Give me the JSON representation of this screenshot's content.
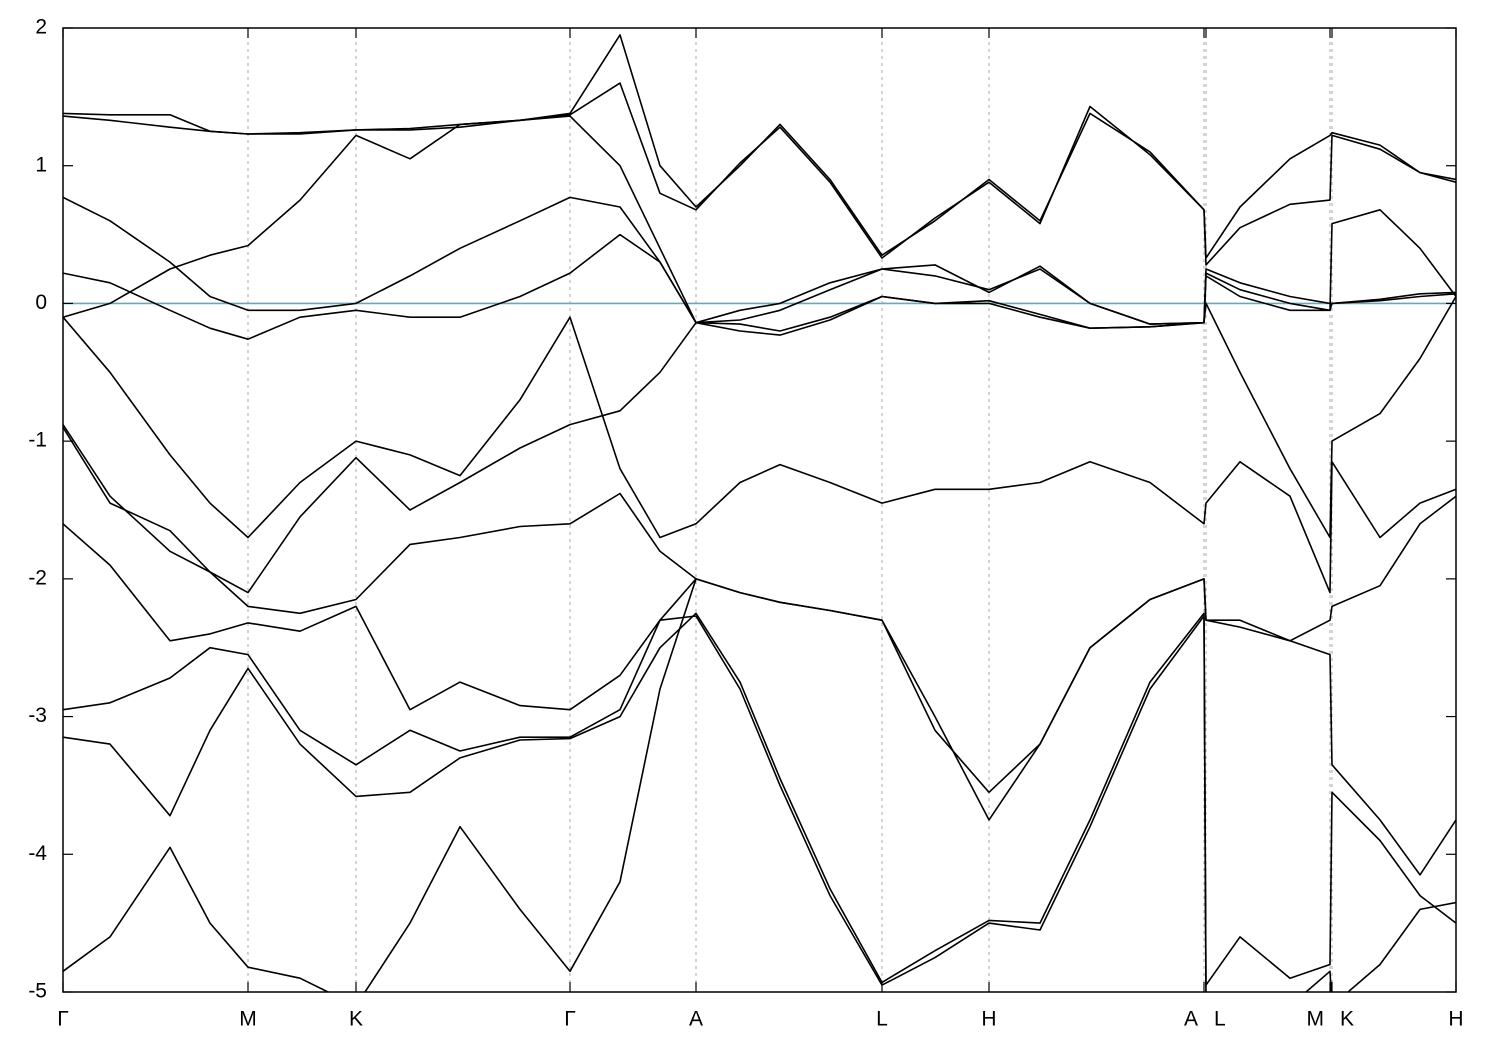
{
  "chart_data": {
    "type": "line",
    "xlim": [
      0,
      1393
    ],
    "ylim": [
      -5,
      2
    ],
    "yticks": [
      -5,
      -4,
      -3,
      -2,
      -1,
      0,
      1,
      2
    ],
    "xticks": [
      {
        "value": 0,
        "label": "Γ"
      },
      {
        "value": 185,
        "label": "M"
      },
      {
        "value": 293,
        "label": "K"
      },
      {
        "value": 507,
        "label": "Γ"
      },
      {
        "value": 633,
        "label": "A"
      },
      {
        "value": 819,
        "label": "L"
      },
      {
        "value": 926,
        "label": "H"
      },
      {
        "value": 1141,
        "label": "A"
      },
      {
        "value": 1143,
        "label": "L"
      },
      {
        "value": 1267,
        "label": "M"
      },
      {
        "value": 1269,
        "label": "K"
      },
      {
        "value": 1393,
        "label": "H"
      }
    ],
    "grid": true,
    "hline": 0,
    "hline_color": "#5aaec4",
    "x": [
      0,
      47,
      107,
      147,
      185,
      237,
      293,
      347,
      397,
      457,
      507,
      557,
      597,
      633,
      677,
      717,
      767,
      819,
      872,
      926,
      977,
      1027,
      1087,
      1141,
      1143,
      1177,
      1227,
      1267,
      1269,
      1317,
      1357,
      1393
    ],
    "series": [
      {
        "color": "#000000",
        "values": [
          1.38,
          1.37,
          1.37,
          1.25,
          1.23,
          1.23,
          1.26,
          1.26,
          1.28,
          1.33,
          1.38,
          1.95,
          1.0,
          0.7,
          1.0,
          1.3,
          0.9,
          0.35,
          0.6,
          0.9,
          0.6,
          1.38,
          1.1,
          0.68,
          0.33,
          0.7,
          1.05,
          1.22,
          1.24,
          1.15,
          0.95,
          0.9
        ]
      },
      {
        "color": "#000000",
        "values": [
          1.36,
          1.33,
          1.28,
          1.25,
          1.23,
          1.24,
          1.26,
          1.27,
          1.3,
          1.33,
          1.37,
          1.6,
          0.8,
          0.68,
          1.02,
          1.28,
          0.88,
          0.33,
          0.62,
          0.88,
          0.58,
          1.43,
          1.08,
          0.68,
          0.28,
          0.55,
          0.72,
          0.75,
          1.22,
          1.12,
          0.95,
          0.88
        ]
      },
      {
        "color": "#000000",
        "values": [
          -0.1,
          0.0,
          0.25,
          0.35,
          0.42,
          0.75,
          1.22,
          1.05,
          1.3,
          1.33,
          1.36,
          1.0,
          0.4,
          -0.14,
          -0.05,
          0.0,
          0.15,
          0.25,
          0.2,
          0.1,
          0.25,
          0.0,
          -0.15,
          -0.14,
          0.25,
          0.15,
          0.05,
          0.0,
          0.0,
          0.03,
          0.07,
          0.08
        ]
      },
      {
        "color": "#000000",
        "values": [
          0.77,
          0.6,
          0.3,
          0.05,
          -0.05,
          -0.05,
          0.0,
          0.2,
          0.4,
          0.6,
          0.77,
          0.7,
          0.3,
          -0.14,
          -0.15,
          -0.2,
          -0.1,
          0.05,
          0.0,
          0.0,
          -0.1,
          -0.18,
          -0.17,
          -0.14,
          0.2,
          0.05,
          -0.05,
          -0.05,
          0.58,
          0.68,
          0.4,
          0.05
        ]
      },
      {
        "color": "#000000",
        "values": [
          0.22,
          0.15,
          -0.05,
          -0.18,
          -0.26,
          -0.1,
          -0.05,
          -0.1,
          -0.1,
          0.05,
          0.22,
          0.5,
          0.3,
          -0.14,
          -0.2,
          -0.23,
          -0.12,
          0.05,
          0.0,
          0.02,
          -0.08,
          -0.18,
          -0.17,
          -0.14,
          0.0,
          -0.5,
          -1.2,
          -1.7,
          -1.0,
          -0.8,
          -0.4,
          0.05
        ]
      },
      {
        "color": "#000000",
        "values": [
          -0.1,
          -0.5,
          -1.1,
          -1.45,
          -1.7,
          -1.3,
          -1.0,
          -1.1,
          -1.25,
          -0.7,
          -0.1,
          -1.2,
          -1.7,
          -1.6,
          -1.3,
          -1.17,
          -1.3,
          -1.45,
          -1.35,
          -1.35,
          -1.3,
          -1.15,
          -1.3,
          -1.6,
          -1.45,
          -1.15,
          -1.4,
          -2.1,
          -1.15,
          -1.7,
          -1.45,
          -1.35
        ]
      },
      {
        "color": "#000000",
        "values": [
          -0.88,
          -1.4,
          -1.8,
          -1.95,
          -2.1,
          -1.55,
          -1.12,
          -1.5,
          -1.3,
          -1.05,
          -0.88,
          -0.78,
          -0.5,
          -0.14,
          -0.12,
          -0.05,
          0.1,
          0.25,
          0.28,
          0.08,
          0.27,
          0.0,
          -0.15,
          -0.14,
          0.22,
          0.1,
          0.0,
          -0.05,
          0.0,
          0.02,
          0.05,
          0.07
        ]
      },
      {
        "color": "#000000",
        "values": [
          -0.9,
          -1.45,
          -1.65,
          -1.95,
          -2.2,
          -2.25,
          -2.15,
          -1.75,
          -1.7,
          -1.62,
          -1.6,
          -1.38,
          -1.8,
          -2.0,
          -2.1,
          -2.17,
          -2.23,
          -2.3,
          -3.0,
          -3.75,
          -3.2,
          -2.5,
          -2.15,
          -2.0,
          -2.3,
          -2.3,
          -2.45,
          -2.3,
          -2.2,
          -2.05,
          -1.6,
          -1.4
        ]
      },
      {
        "color": "#000000",
        "values": [
          -1.6,
          -1.9,
          -2.45,
          -2.4,
          -2.32,
          -2.38,
          -2.2,
          -2.95,
          -2.75,
          -2.92,
          -2.95,
          -2.7,
          -2.3,
          -2.0,
          -2.1,
          -2.17,
          -2.23,
          -2.3,
          -3.1,
          -3.55,
          -3.2,
          -2.5,
          -2.15,
          -2.0,
          -2.3,
          -2.35,
          -2.45,
          -2.55,
          -3.35,
          -3.75,
          -4.15,
          -3.75
        ]
      },
      {
        "color": "#000000",
        "values": [
          -2.95,
          -2.9,
          -2.72,
          -2.5,
          -2.55,
          -3.1,
          -3.35,
          -3.1,
          -3.25,
          -3.15,
          -3.15,
          -2.95,
          -2.3,
          -2.27,
          -2.8,
          -3.5,
          -4.3,
          -4.95,
          -4.75,
          -4.5,
          -4.55,
          -3.8,
          -2.8,
          -2.27,
          -4.95,
          -4.6,
          -4.9,
          -4.8,
          -3.55,
          -3.9,
          -4.3,
          -4.5
        ]
      },
      {
        "color": "#000000",
        "values": [
          -3.15,
          -3.2,
          -3.72,
          -3.1,
          -2.65,
          -3.2,
          -3.58,
          -3.55,
          -3.3,
          -3.17,
          -3.16,
          -3.0,
          -2.5,
          -2.25,
          -2.75,
          -3.45,
          -4.25,
          -4.93,
          -4.7,
          -4.48,
          -4.5,
          -3.75,
          -2.75,
          -2.25,
          -5.1,
          -5.2,
          -5.1,
          -4.85,
          -5.1,
          -4.8,
          -4.4,
          -4.35
        ]
      },
      {
        "color": "#000000",
        "values": [
          -4.85,
          -4.6,
          -3.95,
          -4.5,
          -4.82,
          -4.9,
          -5.1,
          -4.5,
          -3.8,
          -4.4,
          -4.85,
          -4.2,
          -2.8,
          -2.0,
          null,
          null,
          null,
          null,
          null,
          null,
          null,
          null,
          null,
          null,
          null,
          null,
          null,
          null,
          null,
          null,
          null,
          null
        ]
      }
    ]
  }
}
